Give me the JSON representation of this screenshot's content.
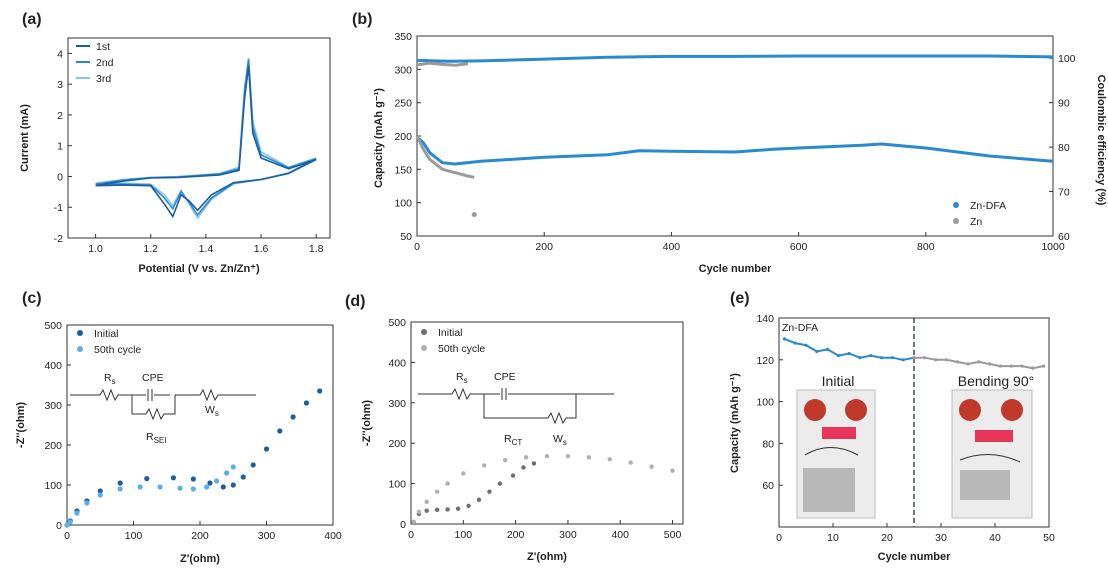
{
  "colors": {
    "dark_blue": "#1a5f9e",
    "mid_blue": "#2a8ad0",
    "light_blue": "#8cc3ea",
    "gray": "#9a9a9a",
    "dark_gray": "#6e6e6e"
  },
  "panels": {
    "a": {
      "label": "(a)"
    },
    "b": {
      "label": "(b)"
    },
    "c": {
      "label": "(c)"
    },
    "d": {
      "label": "(d)"
    },
    "e": {
      "label": "(e)"
    }
  },
  "chart_data": [
    {
      "id": "a",
      "type": "line",
      "xlabel": "Potential (V vs. Zn/Zn⁺)",
      "ylabel": "Current (mA)",
      "xlim": [
        0.9,
        1.85
      ],
      "ylim": [
        -2,
        4.5
      ],
      "xticks": [
        "1.0",
        "1.2",
        "1.4",
        "1.6",
        "1.8"
      ],
      "yticks": [
        "-2",
        "-1",
        "0",
        "1",
        "2",
        "3",
        "4"
      ],
      "legend": [
        "1st",
        "2nd",
        "3rd"
      ],
      "series": [
        {
          "name": "1st",
          "color": "#1a5f9e",
          "points": [
            [
              1.0,
              -0.3
            ],
            [
              1.1,
              -0.28
            ],
            [
              1.2,
              -0.3
            ],
            [
              1.25,
              -0.9
            ],
            [
              1.28,
              -1.3
            ],
            [
              1.31,
              -0.6
            ],
            [
              1.34,
              -0.8
            ],
            [
              1.37,
              -1.1
            ],
            [
              1.42,
              -0.6
            ],
            [
              1.5,
              -0.2
            ],
            [
              1.6,
              -0.1
            ],
            [
              1.7,
              0.1
            ],
            [
              1.8,
              0.55
            ],
            [
              1.7,
              0.25
            ],
            [
              1.6,
              0.6
            ],
            [
              1.57,
              1.4
            ],
            [
              1.555,
              3.6
            ],
            [
              1.54,
              2.5
            ],
            [
              1.52,
              0.2
            ],
            [
              1.45,
              0.05
            ],
            [
              1.3,
              -0.03
            ],
            [
              1.2,
              -0.05
            ],
            [
              1.1,
              -0.15
            ],
            [
              1.0,
              -0.3
            ]
          ]
        },
        {
          "name": "2nd",
          "color": "#2a8ad0",
          "points": [
            [
              1.0,
              -0.25
            ],
            [
              1.1,
              -0.25
            ],
            [
              1.2,
              -0.28
            ],
            [
              1.25,
              -0.7
            ],
            [
              1.28,
              -1.05
            ],
            [
              1.31,
              -0.5
            ],
            [
              1.34,
              -0.85
            ],
            [
              1.37,
              -1.25
            ],
            [
              1.42,
              -0.7
            ],
            [
              1.5,
              -0.22
            ],
            [
              1.6,
              -0.1
            ],
            [
              1.7,
              0.1
            ],
            [
              1.8,
              0.58
            ],
            [
              1.7,
              0.28
            ],
            [
              1.6,
              0.7
            ],
            [
              1.57,
              1.6
            ],
            [
              1.555,
              3.8
            ],
            [
              1.54,
              2.7
            ],
            [
              1.52,
              0.25
            ],
            [
              1.45,
              0.08
            ],
            [
              1.3,
              -0.02
            ],
            [
              1.2,
              -0.04
            ],
            [
              1.1,
              -0.12
            ],
            [
              1.0,
              -0.25
            ]
          ]
        },
        {
          "name": "3rd",
          "color": "#8cc3ea",
          "points": [
            [
              1.0,
              -0.22
            ],
            [
              1.1,
              -0.22
            ],
            [
              1.2,
              -0.25
            ],
            [
              1.25,
              -0.6
            ],
            [
              1.28,
              -0.95
            ],
            [
              1.31,
              -0.45
            ],
            [
              1.34,
              -0.9
            ],
            [
              1.37,
              -1.35
            ],
            [
              1.42,
              -0.75
            ],
            [
              1.5,
              -0.24
            ],
            [
              1.6,
              -0.1
            ],
            [
              1.7,
              0.12
            ],
            [
              1.8,
              0.6
            ],
            [
              1.7,
              0.3
            ],
            [
              1.6,
              0.8
            ],
            [
              1.57,
              1.8
            ],
            [
              1.555,
              3.85
            ],
            [
              1.54,
              2.9
            ],
            [
              1.52,
              0.3
            ],
            [
              1.45,
              0.1
            ],
            [
              1.3,
              0.0
            ],
            [
              1.2,
              -0.03
            ],
            [
              1.1,
              -0.1
            ],
            [
              1.0,
              -0.22
            ]
          ]
        }
      ]
    },
    {
      "id": "b",
      "type": "scatter",
      "xlabel": "Cycle number",
      "ylabel": "Capacity (mAh g⁻¹)",
      "y2label": "Coulombic efficiency (%)",
      "xlim": [
        0,
        1000
      ],
      "ylim": [
        50,
        350
      ],
      "y2lim": [
        60,
        105
      ],
      "xticks": [
        "0",
        "200",
        "400",
        "600",
        "800",
        "1000"
      ],
      "yticks": [
        "50",
        "100",
        "150",
        "200",
        "250",
        "300",
        "350"
      ],
      "y2ticks": [
        "60",
        "70",
        "80",
        "90",
        "100"
      ],
      "legend": [
        "Zn-DFA",
        "Zn"
      ],
      "series": [
        {
          "name": "Zn-DFA",
          "axis": "left",
          "color": "#2a8ad0",
          "points": [
            [
              0,
              198
            ],
            [
              10,
              190
            ],
            [
              20,
              175
            ],
            [
              40,
              160
            ],
            [
              60,
              158
            ],
            [
              100,
              162
            ],
            [
              200,
              168
            ],
            [
              300,
              172
            ],
            [
              350,
              178
            ],
            [
              400,
              177
            ],
            [
              500,
              176
            ],
            [
              560,
              180
            ],
            [
              600,
              182
            ],
            [
              700,
              186
            ],
            [
              730,
              188
            ],
            [
              800,
              182
            ],
            [
              900,
              170
            ],
            [
              1000,
              162
            ]
          ]
        },
        {
          "name": "Zn",
          "axis": "left",
          "color": "#9a9a9a",
          "points": [
            [
              0,
              200
            ],
            [
              10,
              180
            ],
            [
              20,
              165
            ],
            [
              40,
              150
            ],
            [
              60,
              145
            ],
            [
              80,
              140
            ],
            [
              90,
              138
            ]
          ]
        },
        {
          "name": "Zn",
          "axis": "left",
          "color": "#9a9a9a",
          "points": [
            [
              90,
              82
            ]
          ]
        },
        {
          "name": "Zn-DFA CE",
          "axis": "right",
          "color": "#2a8ad0",
          "points": [
            [
              0,
              99.5
            ],
            [
              50,
              99.3
            ],
            [
              100,
              99.4
            ],
            [
              200,
              99.8
            ],
            [
              300,
              100.2
            ],
            [
              400,
              100.4
            ],
            [
              500,
              100.4
            ],
            [
              600,
              100.5
            ],
            [
              700,
              100.5
            ],
            [
              800,
              100.5
            ],
            [
              900,
              100.5
            ],
            [
              1000,
              100.3
            ]
          ]
        },
        {
          "name": "Zn CE",
          "axis": "right",
          "color": "#9a9a9a",
          "points": [
            [
              0,
              98.5
            ],
            [
              20,
              98.9
            ],
            [
              40,
              98.6
            ],
            [
              60,
              98.4
            ],
            [
              80,
              98.8
            ]
          ]
        }
      ]
    },
    {
      "id": "c",
      "type": "scatter",
      "xlabel": "Z'(ohm)",
      "ylabel": "-Z''(ohm)",
      "xlim": [
        0,
        400
      ],
      "ylim": [
        0,
        500
      ],
      "xticks": [
        "0",
        "100",
        "200",
        "300",
        "400"
      ],
      "yticks": [
        "0",
        "100",
        "200",
        "300",
        "400",
        "500"
      ],
      "legend": [
        "Initial",
        "50th cycle"
      ],
      "circuit": {
        "r": "R",
        "r_sub": "s",
        "cpe": "CPE",
        "rsei": "R",
        "rsei_sub": "SEI",
        "w": "W",
        "w_sub": "s"
      },
      "series": [
        {
          "name": "Initial",
          "color": "#1a5f9e",
          "points": [
            [
              0,
              0
            ],
            [
              5,
              10
            ],
            [
              15,
              35
            ],
            [
              30,
              60
            ],
            [
              50,
              85
            ],
            [
              80,
              105
            ],
            [
              120,
              116
            ],
            [
              160,
              118
            ],
            [
              190,
              115
            ],
            [
              215,
              105
            ],
            [
              235,
              95
            ],
            [
              250,
              100
            ],
            [
              265,
              120
            ],
            [
              280,
              150
            ],
            [
              300,
              190
            ],
            [
              320,
              235
            ],
            [
              340,
              270
            ],
            [
              360,
              305
            ],
            [
              380,
              335
            ]
          ]
        },
        {
          "name": "50th cycle",
          "color": "#5ab0e6",
          "points": [
            [
              0,
              0
            ],
            [
              5,
              8
            ],
            [
              15,
              30
            ],
            [
              30,
              55
            ],
            [
              50,
              75
            ],
            [
              80,
              90
            ],
            [
              110,
              95
            ],
            [
              140,
              95
            ],
            [
              170,
              92
            ],
            [
              190,
              90
            ],
            [
              210,
              95
            ],
            [
              225,
              110
            ],
            [
              240,
              130
            ],
            [
              250,
              145
            ]
          ]
        }
      ]
    },
    {
      "id": "d",
      "type": "scatter",
      "xlabel": "Z'(ohm)",
      "ylabel": "-Z''(ohm)",
      "xlim": [
        0,
        520
      ],
      "ylim": [
        0,
        500
      ],
      "xticks": [
        "0",
        "100",
        "200",
        "300",
        "400",
        "500"
      ],
      "yticks": [
        "0",
        "100",
        "200",
        "300",
        "400",
        "500"
      ],
      "legend": [
        "Initial",
        "50th cycle"
      ],
      "circuit": {
        "r": "R",
        "r_sub": "s",
        "cpe": "CPE",
        "rct": "R",
        "rct_sub": "CT",
        "w": "W",
        "w_sub": "s"
      },
      "series": [
        {
          "name": "Initial",
          "color": "#6e6e6e",
          "points": [
            [
              5,
              5
            ],
            [
              15,
              25
            ],
            [
              30,
              33
            ],
            [
              50,
              35
            ],
            [
              70,
              36
            ],
            [
              90,
              38
            ],
            [
              110,
              45
            ],
            [
              130,
              60
            ],
            [
              150,
              80
            ],
            [
              170,
              100
            ],
            [
              195,
              120
            ],
            [
              215,
              140
            ],
            [
              235,
              150
            ]
          ]
        },
        {
          "name": "50th cycle",
          "color": "#b0b0b0",
          "points": [
            [
              5,
              5
            ],
            [
              15,
              30
            ],
            [
              30,
              55
            ],
            [
              50,
              80
            ],
            [
              70,
              100
            ],
            [
              100,
              125
            ],
            [
              140,
              145
            ],
            [
              180,
              158
            ],
            [
              220,
              165
            ],
            [
              260,
              168
            ],
            [
              300,
              168
            ],
            [
              340,
              165
            ],
            [
              380,
              160
            ],
            [
              420,
              152
            ],
            [
              460,
              142
            ],
            [
              500,
              132
            ]
          ]
        }
      ]
    },
    {
      "id": "e",
      "type": "line",
      "xlabel": "Cycle number",
      "ylabel": "Capacity (mAh g⁻¹)",
      "xlim": [
        0,
        50
      ],
      "ylim": [
        40,
        140
      ],
      "xticks": [
        "0",
        "10",
        "20",
        "30",
        "40",
        "50"
      ],
      "yticks": [
        "60",
        "80",
        "100",
        "120",
        "140"
      ],
      "annotations": [
        "Zn-DFA",
        "Initial",
        "Bending 90°"
      ],
      "divider_x": 25,
      "series": [
        {
          "name": "Initial",
          "color": "#2a8ad0",
          "points": [
            [
              1,
              130
            ],
            [
              3,
              128
            ],
            [
              5,
              127
            ],
            [
              7,
              124
            ],
            [
              9,
              125
            ],
            [
              11,
              122
            ],
            [
              13,
              123
            ],
            [
              15,
              121
            ],
            [
              17,
              122
            ],
            [
              19,
              121
            ],
            [
              21,
              121
            ],
            [
              23,
              120
            ],
            [
              25,
              121
            ]
          ]
        },
        {
          "name": "Bending 90°",
          "color": "#9a9a9a",
          "points": [
            [
              25,
              121
            ],
            [
              27,
              121
            ],
            [
              29,
              120
            ],
            [
              31,
              120
            ],
            [
              33,
              119
            ],
            [
              35,
              118
            ],
            [
              37,
              119
            ],
            [
              39,
              118
            ],
            [
              41,
              117
            ],
            [
              43,
              117
            ],
            [
              45,
              117
            ],
            [
              47,
              116
            ],
            [
              49,
              117
            ]
          ]
        }
      ]
    }
  ]
}
